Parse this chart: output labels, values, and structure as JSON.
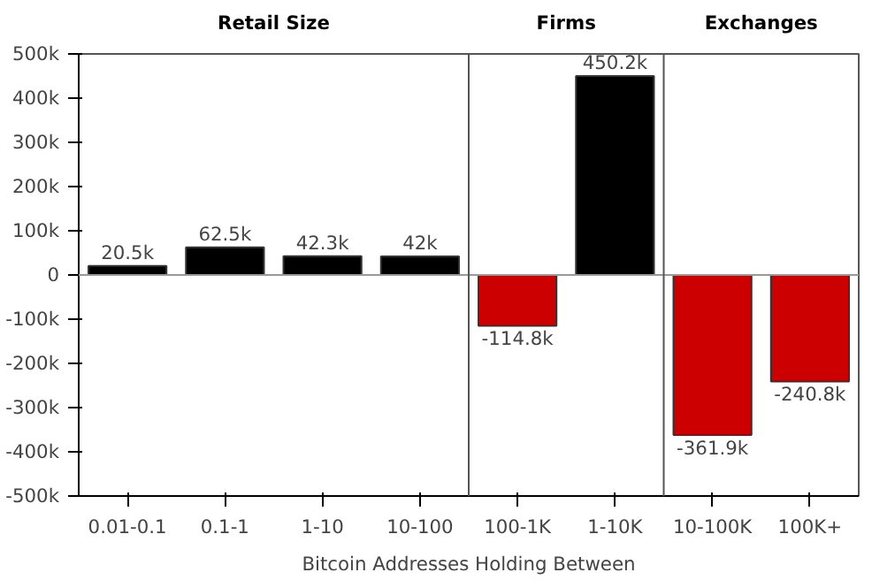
{
  "chart_data": {
    "type": "bar",
    "xlabel": "Bitcoin Addresses Holding Between",
    "categories": [
      "0.01-0.1",
      "0.1-1",
      "1-10",
      "10-100",
      "100-1K",
      "1-10K",
      "10-100K",
      "100K+"
    ],
    "values": [
      20500,
      62500,
      42300,
      42000,
      -114800,
      450200,
      -361900,
      -240800
    ],
    "colors": [
      "#000000",
      "#000000",
      "#000000",
      "#000000",
      "#cc0000",
      "#000000",
      "#cc0000",
      "#cc0000"
    ],
    "value_labels": [
      "20.5k",
      "62.5k",
      "42.3k",
      "42k",
      "-114.8k",
      "450.2k",
      "-361.9k",
      "-240.8k"
    ],
    "ylim": [
      -500000,
      500000
    ],
    "yticks": [
      {
        "value": -500000,
        "label": "-500k"
      },
      {
        "value": -400000,
        "label": "-400k"
      },
      {
        "value": -300000,
        "label": "-300k"
      },
      {
        "value": -200000,
        "label": "-200k"
      },
      {
        "value": -100000,
        "label": "-100k"
      },
      0,
      {
        "value": 100000,
        "label": "100k"
      },
      {
        "value": 200000,
        "label": "200k"
      },
      {
        "value": 300000,
        "label": "300k"
      },
      {
        "value": 400000,
        "label": "400k"
      },
      {
        "value": 500000,
        "label": "500k"
      }
    ],
    "annotations": [
      "Retail Size",
      "Firms",
      "Exchanges"
    ],
    "ref_lines": [
      {
        "axis": "y",
        "value": 0,
        "color": "#999999"
      }
    ],
    "grid": false
  }
}
